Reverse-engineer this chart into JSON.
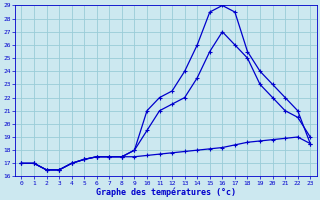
{
  "xlabel": "Graphe des températures (°c)",
  "bg_color": "#cce8f0",
  "grid_color": "#99ccd8",
  "line_color": "#0000cc",
  "xlim": [
    -0.5,
    23.5
  ],
  "ylim": [
    16,
    29
  ],
  "yticks": [
    16,
    17,
    18,
    19,
    20,
    21,
    22,
    23,
    24,
    25,
    26,
    27,
    28,
    29
  ],
  "xticks": [
    0,
    1,
    2,
    3,
    4,
    5,
    6,
    7,
    8,
    9,
    10,
    11,
    12,
    13,
    14,
    15,
    16,
    17,
    18,
    19,
    20,
    21,
    22,
    23
  ],
  "line1_x": [
    0,
    1,
    2,
    3,
    4,
    5,
    6,
    7,
    8,
    9,
    10,
    11,
    12,
    13,
    14,
    15,
    16,
    17,
    18,
    19,
    20,
    21,
    22,
    23
  ],
  "line1_y": [
    17.0,
    17.0,
    16.5,
    16.5,
    17.0,
    17.3,
    17.5,
    17.5,
    17.5,
    17.5,
    17.6,
    17.7,
    17.8,
    17.9,
    18.0,
    18.1,
    18.2,
    18.4,
    18.6,
    18.7,
    18.8,
    18.9,
    19.0,
    18.5
  ],
  "line2_x": [
    0,
    1,
    2,
    3,
    4,
    5,
    6,
    7,
    8,
    9,
    10,
    11,
    12,
    13,
    14,
    15,
    16,
    17,
    18,
    19,
    20,
    21,
    22,
    23
  ],
  "line2_y": [
    17.0,
    17.0,
    16.5,
    16.5,
    17.0,
    17.3,
    17.5,
    17.5,
    17.5,
    18.0,
    19.5,
    21.0,
    21.5,
    22.0,
    23.5,
    25.5,
    27.0,
    26.0,
    25.0,
    23.0,
    22.0,
    21.0,
    20.5,
    19.0
  ],
  "line3_x": [
    0,
    1,
    2,
    3,
    4,
    5,
    6,
    7,
    8,
    9,
    10,
    11,
    12,
    13,
    14,
    15,
    16,
    17,
    18,
    19,
    20,
    21,
    22,
    23
  ],
  "line3_y": [
    17.0,
    17.0,
    16.5,
    16.5,
    17.0,
    17.3,
    17.5,
    17.5,
    17.5,
    18.0,
    21.0,
    22.0,
    22.5,
    24.0,
    26.0,
    28.5,
    29.0,
    28.5,
    25.5,
    24.0,
    23.0,
    22.0,
    21.0,
    18.5
  ]
}
